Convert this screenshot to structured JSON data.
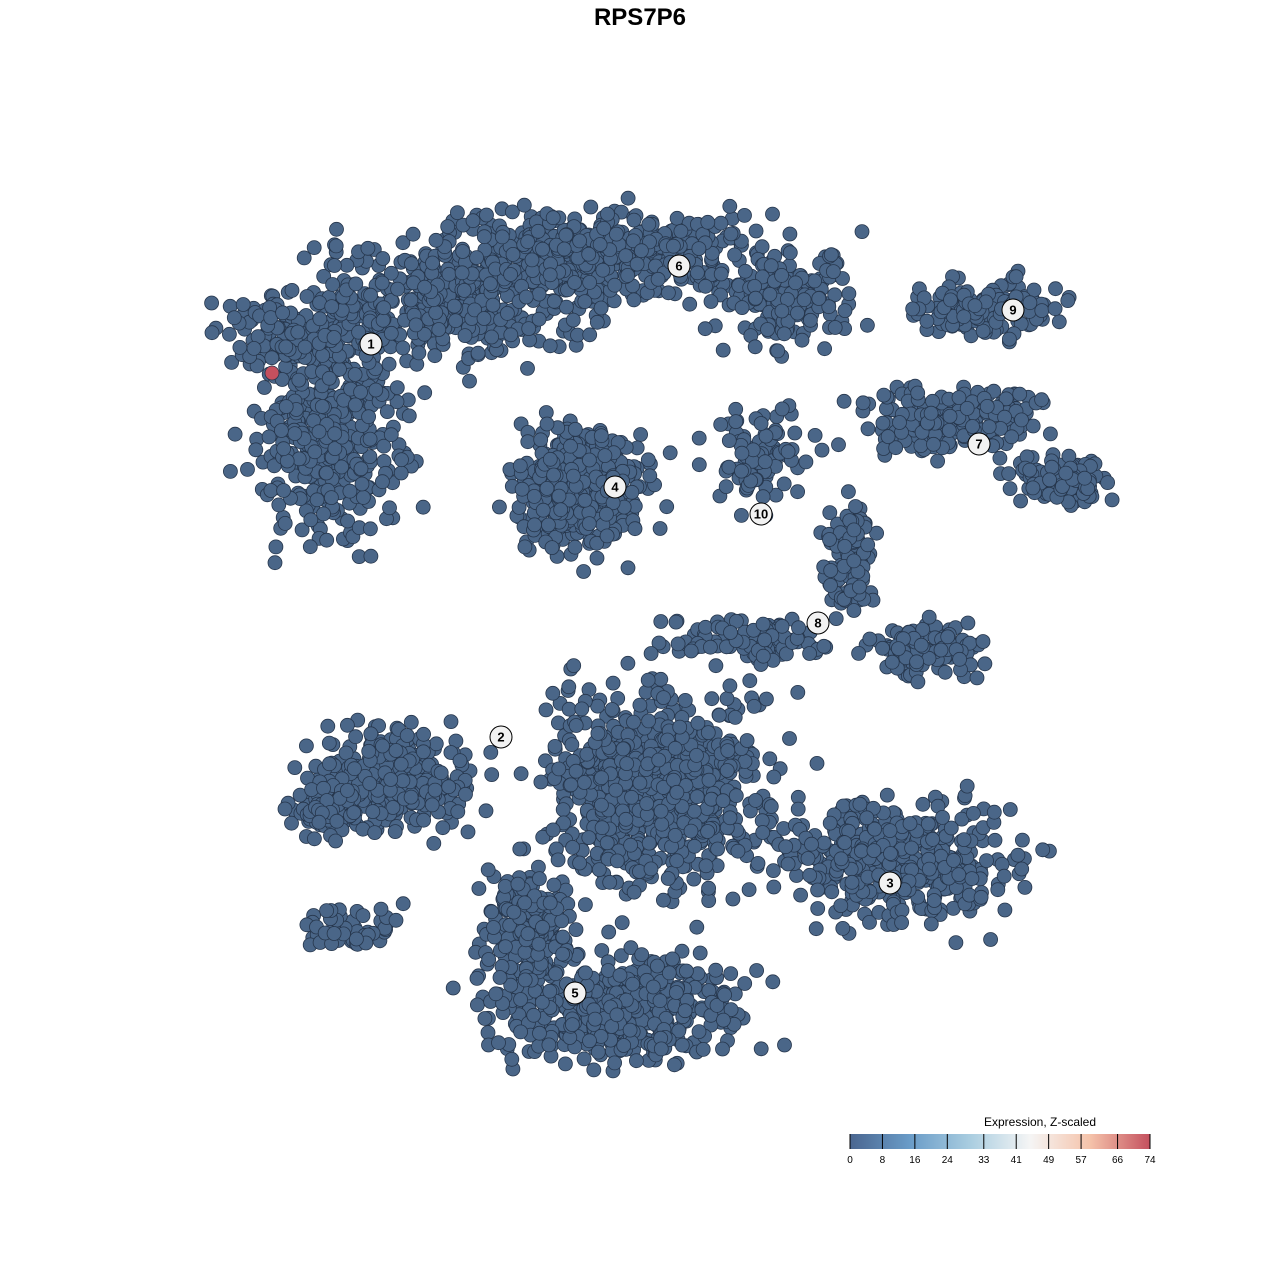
{
  "chart_data": {
    "type": "scatter",
    "title": "RPS7P6",
    "xlabel": "",
    "ylabel": "",
    "grid": false,
    "point_color_default": "#4a6688",
    "clusters": [
      {
        "label": "1",
        "x": -26.9,
        "y": 29.6
      },
      {
        "label": "2",
        "x": -13.9,
        "y": -9.7
      },
      {
        "label": "3",
        "x": 25.0,
        "y": -24.3
      },
      {
        "label": "4",
        "x": -2.5,
        "y": 15.3
      },
      {
        "label": "5",
        "x": -6.5,
        "y": -35.3
      },
      {
        "label": "6",
        "x": 3.9,
        "y": 37.4
      },
      {
        "label": "7",
        "x": 33.9,
        "y": 19.6
      },
      {
        "label": "8",
        "x": 17.8,
        "y": 1.7
      },
      {
        "label": "9",
        "x": 37.3,
        "y": 33.0
      },
      {
        "label": "10",
        "x": 12.1,
        "y": 12.6
      }
    ],
    "highlighted_points": [
      {
        "x": -36.8,
        "y": 26.7,
        "value": 74
      }
    ],
    "legend": {
      "title": "Expression, Z-scaled",
      "placement": "bottom-right",
      "ticks": [
        "0",
        "8",
        "16",
        "24",
        "33",
        "41",
        "49",
        "57",
        "66",
        "74"
      ],
      "range": [
        0,
        74
      ],
      "colors": [
        "#4a6690",
        "#6a9cc8",
        "#a9cde0",
        "#f5f5f5",
        "#f5c3aa",
        "#c4505e"
      ]
    }
  }
}
